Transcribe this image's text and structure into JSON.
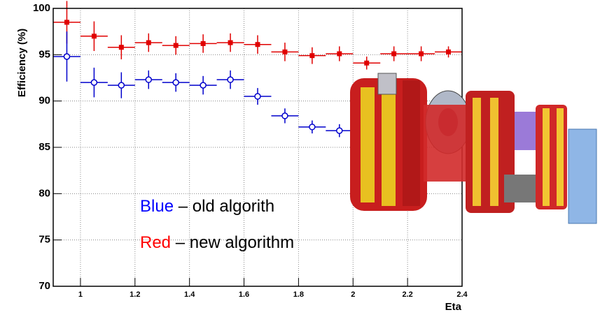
{
  "chart_data": {
    "type": "scatter",
    "ylabel": "Efficiency (%)",
    "xlabel": "Eta",
    "xlim": [
      0.9,
      2.4
    ],
    "ylim": [
      70,
      100
    ],
    "xticks": [
      1,
      1.2,
      1.4,
      1.6,
      1.8,
      2,
      2.2,
      2.4
    ],
    "yticks": [
      70,
      75,
      80,
      85,
      90,
      95,
      100
    ],
    "grid": true,
    "series": [
      {
        "color": "#e00000",
        "marker": "square",
        "xerr": 0.05,
        "x": [
          0.95,
          1.05,
          1.15,
          1.25,
          1.35,
          1.45,
          1.55,
          1.65,
          1.75,
          1.85,
          1.95,
          2.05,
          2.15,
          2.25,
          2.35
        ],
        "values": [
          98.5,
          97,
          95.8,
          96.3,
          96,
          96.2,
          96.3,
          96.1,
          95.3,
          94.9,
          95.1,
          94.1,
          95.1,
          95.1,
          95.3
        ],
        "errors": [
          2.3,
          1.6,
          1.3,
          1.0,
          1.0,
          1.0,
          1.0,
          1.0,
          1.0,
          0.9,
          0.8,
          0.7,
          0.8,
          0.8,
          0.6
        ]
      },
      {
        "color": "#0000cc",
        "marker": "open-circle",
        "xerr": 0.05,
        "x": [
          0.95,
          1.05,
          1.15,
          1.25,
          1.35,
          1.45,
          1.55,
          1.65,
          1.75,
          1.85,
          1.95
        ],
        "values": [
          94.8,
          92.0,
          91.7,
          92.3,
          92.0,
          91.7,
          92.3,
          90.5,
          88.4,
          87.2,
          86.8
        ],
        "errors": [
          2.7,
          1.6,
          1.4,
          1.0,
          1.0,
          1.0,
          1.0,
          0.9,
          0.8,
          0.7,
          0.7
        ]
      }
    ],
    "annotations": [
      [
        {
          "text": "Blue",
          "color": "#0000ff"
        },
        {
          "text": " –  old algorith",
          "color": "#000000"
        }
      ],
      [
        {
          "text": "Red",
          "color": "#ff0000"
        },
        {
          "text": "  – new  algorithm",
          "color": "#000000"
        }
      ]
    ]
  }
}
